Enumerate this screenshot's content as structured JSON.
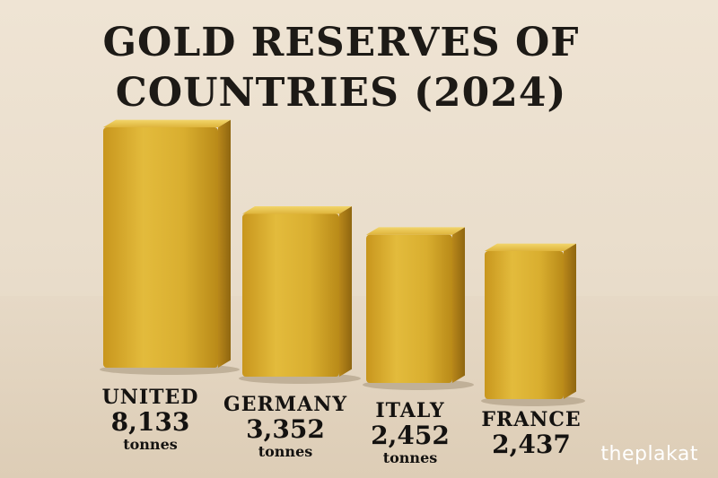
{
  "title_line1": "GOLD RESERVES OF",
  "title_line2": "COUNTRIES (2024)",
  "watermark": "theplakat",
  "colors": {
    "gold_light": "#e9c64a",
    "gold_mid": "#d4a82a",
    "gold_dark": "#a47a14",
    "text": "#141210"
  },
  "chart_data": {
    "type": "bar",
    "title": "GOLD RESERVES OF COUNTRIES (2024)",
    "categories": [
      "UNITED",
      "GERMANY",
      "ITALY",
      "FRANCE"
    ],
    "values": [
      8133,
      3352,
      2452,
      2437
    ],
    "value_labels": [
      "8,133",
      "3,352",
      "2,452",
      "2,437"
    ],
    "unit_labels": [
      "tonnes",
      "tonnes",
      "tonnes",
      ""
    ],
    "xlabel": "",
    "ylabel": "",
    "grid": false,
    "legend": "none"
  },
  "labels": [
    {
      "country": "UNITED",
      "value": "8,133",
      "unit": "tonnes"
    },
    {
      "country": "GERMANY",
      "value": "3,352",
      "unit": "tonnes"
    },
    {
      "country": "ITALY",
      "value": "2,452",
      "unit": "tonnes"
    },
    {
      "country": "FRANCE",
      "value": "2,437",
      "unit": ""
    }
  ]
}
